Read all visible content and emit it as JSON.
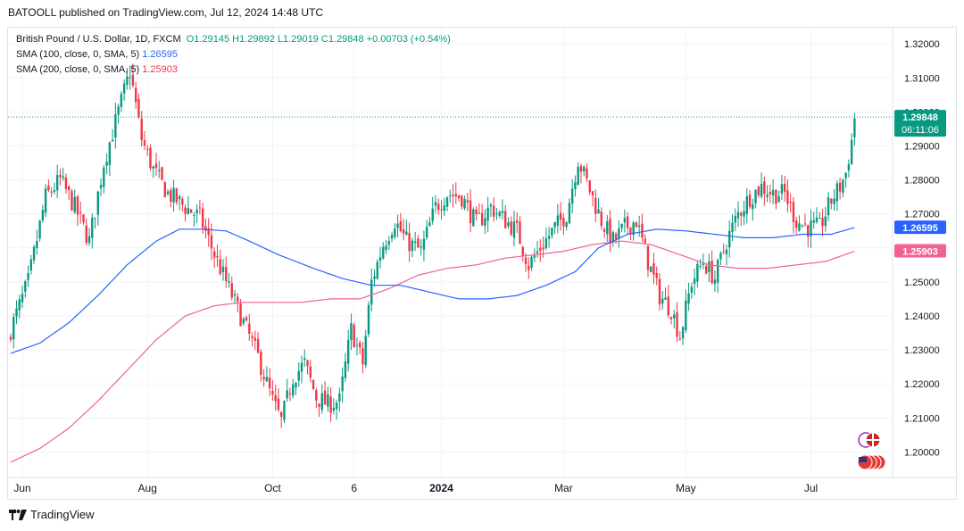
{
  "header": {
    "published_by": "BATOOLL published on TradingView.com, Jul 12, 2024 14:48 UTC"
  },
  "legend": {
    "symbol": "British Pound / U.S. Dollar, 1D, FXCM",
    "open": "O1.29145",
    "high": "H1.29892",
    "low": "L1.29019",
    "close": "C1.29848",
    "change": "+0.00703 (+0.54%)",
    "sma100_label": "SMA (100, close, 0, SMA, 5)",
    "sma100_value": "1.26595",
    "sma200_label": "SMA (200, close, 0, SMA, 5)",
    "sma200_value": "1.25903"
  },
  "footer": {
    "brand": "TradingView"
  },
  "colors": {
    "up": "#089981",
    "down": "#f23645",
    "sma100": "#2962ff",
    "sma200": "#f06292",
    "grid": "#f0f3fa",
    "text": "#131722"
  },
  "chart_data": {
    "type": "candlestick",
    "instrument": "British Pound / U.S. Dollar",
    "timeframe": "1D",
    "x_tick_labels": [
      "Jun",
      "Aug",
      "Oct",
      "6",
      "2024",
      "Mar",
      "May",
      "Jul"
    ],
    "x_tick_index": [
      4,
      47,
      90,
      118,
      148,
      190,
      232,
      275
    ],
    "y_tick_labels": [
      "1.20000",
      "1.21000",
      "1.22000",
      "1.23000",
      "1.24000",
      "1.25000",
      "1.26000",
      "1.27000",
      "1.28000",
      "1.29000",
      "1.30000",
      "1.31000",
      "1.32000"
    ],
    "ylim": [
      1.1925,
      1.3245
    ],
    "last_price": {
      "value": "1.29848",
      "countdown": "06:11:06"
    },
    "sma100_last": "1.26595",
    "sma200_last": "1.25903",
    "close_path": [
      [
        0,
        1.236
      ],
      [
        6,
        1.25
      ],
      [
        12,
        1.275
      ],
      [
        17,
        1.28
      ],
      [
        22,
        1.272
      ],
      [
        27,
        1.262
      ],
      [
        32,
        1.285
      ],
      [
        37,
        1.3
      ],
      [
        41,
        1.312
      ],
      [
        45,
        1.292
      ],
      [
        49,
        1.283
      ],
      [
        54,
        1.276
      ],
      [
        60,
        1.272
      ],
      [
        65,
        1.269
      ],
      [
        70,
        1.258
      ],
      [
        75,
        1.248
      ],
      [
        80,
        1.238
      ],
      [
        85,
        1.228
      ],
      [
        90,
        1.215
      ],
      [
        93,
        1.209
      ],
      [
        97,
        1.222
      ],
      [
        101,
        1.226
      ],
      [
        105,
        1.216
      ],
      [
        109,
        1.214
      ],
      [
        113,
        1.215
      ],
      [
        117,
        1.236
      ],
      [
        121,
        1.226
      ],
      [
        124,
        1.25
      ],
      [
        128,
        1.261
      ],
      [
        132,
        1.268
      ],
      [
        136,
        1.262
      ],
      [
        141,
        1.259
      ],
      [
        146,
        1.272
      ],
      [
        150,
        1.276
      ],
      [
        155,
        1.275
      ],
      [
        160,
        1.267
      ],
      [
        165,
        1.272
      ],
      [
        170,
        1.268
      ],
      [
        174,
        1.265
      ],
      [
        178,
        1.255
      ],
      [
        182,
        1.26
      ],
      [
        187,
        1.266
      ],
      [
        191,
        1.27
      ],
      [
        195,
        1.286
      ],
      [
        199,
        1.277
      ],
      [
        203,
        1.268
      ],
      [
        207,
        1.262
      ],
      [
        211,
        1.266
      ],
      [
        215,
        1.268
      ],
      [
        219,
        1.256
      ],
      [
        223,
        1.246
      ],
      [
        227,
        1.242
      ],
      [
        230,
        1.234
      ],
      [
        234,
        1.25
      ],
      [
        238,
        1.256
      ],
      [
        242,
        1.251
      ],
      [
        246,
        1.262
      ],
      [
        250,
        1.27
      ],
      [
        254,
        1.275
      ],
      [
        258,
        1.278
      ],
      [
        262,
        1.276
      ],
      [
        266,
        1.276
      ],
      [
        270,
        1.268
      ],
      [
        274,
        1.266
      ],
      [
        278,
        1.266
      ],
      [
        282,
        1.274
      ],
      [
        285,
        1.278
      ],
      [
        287,
        1.282
      ],
      [
        289,
        1.2915
      ],
      [
        290,
        1.2985
      ]
    ],
    "sma100_path": [
      [
        0,
        1.229
      ],
      [
        10,
        1.232
      ],
      [
        20,
        1.238
      ],
      [
        30,
        1.246
      ],
      [
        40,
        1.255
      ],
      [
        50,
        1.262
      ],
      [
        58,
        1.2655
      ],
      [
        66,
        1.2655
      ],
      [
        74,
        1.265
      ],
      [
        82,
        1.262
      ],
      [
        92,
        1.258
      ],
      [
        104,
        1.254
      ],
      [
        114,
        1.251
      ],
      [
        124,
        1.249
      ],
      [
        134,
        1.249
      ],
      [
        144,
        1.247
      ],
      [
        154,
        1.245
      ],
      [
        164,
        1.245
      ],
      [
        174,
        1.246
      ],
      [
        184,
        1.249
      ],
      [
        194,
        1.253
      ],
      [
        202,
        1.26
      ],
      [
        212,
        1.264
      ],
      [
        222,
        1.2655
      ],
      [
        232,
        1.265
      ],
      [
        242,
        1.264
      ],
      [
        252,
        1.263
      ],
      [
        262,
        1.263
      ],
      [
        272,
        1.264
      ],
      [
        282,
        1.264
      ],
      [
        290,
        1.266
      ]
    ],
    "sma200_path": [
      [
        0,
        1.197
      ],
      [
        10,
        1.201
      ],
      [
        20,
        1.207
      ],
      [
        30,
        1.215
      ],
      [
        40,
        1.224
      ],
      [
        50,
        1.233
      ],
      [
        60,
        1.24
      ],
      [
        70,
        1.243
      ],
      [
        80,
        1.244
      ],
      [
        90,
        1.244
      ],
      [
        100,
        1.244
      ],
      [
        110,
        1.245
      ],
      [
        120,
        1.245
      ],
      [
        130,
        1.248
      ],
      [
        140,
        1.252
      ],
      [
        150,
        1.254
      ],
      [
        160,
        1.255
      ],
      [
        170,
        1.257
      ],
      [
        180,
        1.258
      ],
      [
        190,
        1.259
      ],
      [
        200,
        1.261
      ],
      [
        210,
        1.262
      ],
      [
        220,
        1.261
      ],
      [
        230,
        1.258
      ],
      [
        240,
        1.255
      ],
      [
        250,
        1.254
      ],
      [
        260,
        1.254
      ],
      [
        270,
        1.255
      ],
      [
        280,
        1.256
      ],
      [
        290,
        1.259
      ]
    ]
  }
}
